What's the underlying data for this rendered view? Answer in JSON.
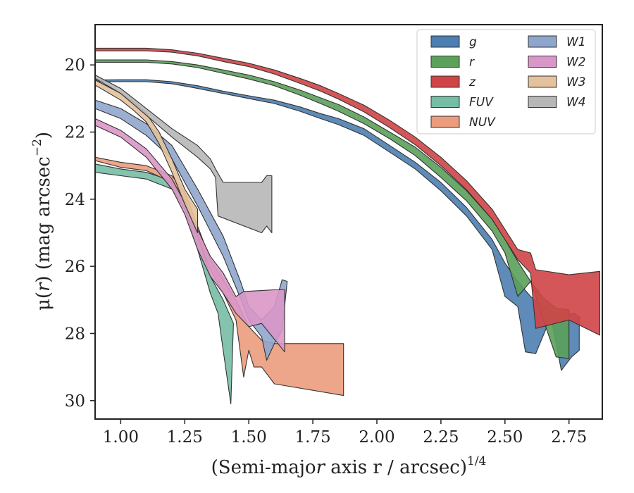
{
  "chart_data": {
    "type": "area",
    "xlabel": "(Semi-major axis r / arcsec)",
    "xlabel_italic_var": "r",
    "xlabel_superscript": "1/4",
    "ylabel": "μ(r) (mag arcsec",
    "ylabel_italic_var": "r",
    "ylabel_superscript": "−2",
    "ylabel_close": ")",
    "xlim": [
      0.9,
      2.88
    ],
    "ylim": [
      30.55,
      18.8
    ],
    "y_inverted": true,
    "xticks": [
      1.0,
      1.25,
      1.5,
      1.75,
      2.0,
      2.25,
      2.5,
      2.75
    ],
    "xtick_labels": [
      "1.00",
      "1.25",
      "1.50",
      "1.75",
      "2.00",
      "2.25",
      "2.50",
      "2.75"
    ],
    "yticks": [
      20,
      22,
      24,
      26,
      28,
      30
    ],
    "ytick_labels": [
      "20",
      "22",
      "24",
      "26",
      "28",
      "30"
    ],
    "grid": false,
    "legend_position": "top-right",
    "legend_columns": 2,
    "series": [
      {
        "name": "g",
        "color": "#4c7eb0",
        "upper": [
          [
            0.9,
            20.45
          ],
          [
            1.0,
            20.44
          ],
          [
            1.1,
            20.44
          ],
          [
            1.2,
            20.5
          ],
          [
            1.3,
            20.62
          ],
          [
            1.4,
            20.78
          ],
          [
            1.5,
            20.92
          ],
          [
            1.6,
            21.05
          ],
          [
            1.7,
            21.25
          ],
          [
            1.78,
            21.45
          ],
          [
            1.85,
            21.6
          ],
          [
            1.95,
            21.9
          ],
          [
            2.05,
            22.4
          ],
          [
            2.15,
            22.9
          ],
          [
            2.25,
            23.5
          ],
          [
            2.35,
            24.25
          ],
          [
            2.45,
            25.2
          ],
          [
            2.5,
            25.9
          ],
          [
            2.55,
            26.45
          ],
          [
            2.6,
            26.9
          ],
          [
            2.65,
            27.2
          ],
          [
            2.72,
            27.45
          ],
          [
            2.77,
            27.4
          ],
          [
            2.79,
            27.5
          ],
          [
            2.79,
            28.5
          ]
        ],
        "lower": [
          [
            0.9,
            20.5
          ],
          [
            1.0,
            20.5
          ],
          [
            1.1,
            20.5
          ],
          [
            1.2,
            20.56
          ],
          [
            1.3,
            20.7
          ],
          [
            1.4,
            20.85
          ],
          [
            1.5,
            21.0
          ],
          [
            1.6,
            21.15
          ],
          [
            1.7,
            21.38
          ],
          [
            1.78,
            21.6
          ],
          [
            1.85,
            21.78
          ],
          [
            1.95,
            22.1
          ],
          [
            2.05,
            22.6
          ],
          [
            2.15,
            23.1
          ],
          [
            2.25,
            23.75
          ],
          [
            2.35,
            24.5
          ],
          [
            2.45,
            25.5
          ],
          [
            2.5,
            26.9
          ],
          [
            2.55,
            27.2
          ],
          [
            2.58,
            28.55
          ],
          [
            2.62,
            28.6
          ],
          [
            2.68,
            27.5
          ],
          [
            2.72,
            29.1
          ],
          [
            2.76,
            28.7
          ],
          [
            2.79,
            28.5
          ]
        ]
      },
      {
        "name": "r",
        "color": "#5ba05b",
        "upper": [
          [
            0.9,
            19.85
          ],
          [
            1.0,
            19.85
          ],
          [
            1.1,
            19.85
          ],
          [
            1.2,
            19.9
          ],
          [
            1.3,
            20.0
          ],
          [
            1.4,
            20.15
          ],
          [
            1.5,
            20.3
          ],
          [
            1.6,
            20.5
          ],
          [
            1.7,
            20.75
          ],
          [
            1.78,
            20.98
          ],
          [
            1.85,
            21.18
          ],
          [
            1.95,
            21.55
          ],
          [
            2.05,
            22.0
          ],
          [
            2.15,
            22.45
          ],
          [
            2.25,
            23.05
          ],
          [
            2.35,
            23.75
          ],
          [
            2.45,
            24.6
          ],
          [
            2.5,
            25.2
          ],
          [
            2.55,
            25.85
          ],
          [
            2.6,
            26.45
          ],
          [
            2.65,
            26.95
          ],
          [
            2.7,
            27.25
          ],
          [
            2.75,
            27.3
          ]
        ],
        "lower": [
          [
            0.9,
            19.92
          ],
          [
            1.0,
            19.92
          ],
          [
            1.1,
            19.92
          ],
          [
            1.2,
            19.97
          ],
          [
            1.3,
            20.08
          ],
          [
            1.4,
            20.25
          ],
          [
            1.5,
            20.42
          ],
          [
            1.6,
            20.62
          ],
          [
            1.7,
            20.9
          ],
          [
            1.78,
            21.15
          ],
          [
            1.85,
            21.38
          ],
          [
            1.95,
            21.75
          ],
          [
            2.05,
            22.2
          ],
          [
            2.15,
            22.7
          ],
          [
            2.25,
            23.35
          ],
          [
            2.35,
            24.05
          ],
          [
            2.45,
            24.95
          ],
          [
            2.5,
            25.6
          ],
          [
            2.55,
            26.9
          ],
          [
            2.6,
            26.45
          ],
          [
            2.65,
            27.6
          ],
          [
            2.7,
            28.7
          ],
          [
            2.75,
            28.75
          ],
          [
            2.75,
            27.3
          ]
        ]
      },
      {
        "name": "z",
        "color": "#d04446",
        "upper": [
          [
            0.9,
            19.5
          ],
          [
            1.0,
            19.5
          ],
          [
            1.1,
            19.5
          ],
          [
            1.2,
            19.55
          ],
          [
            1.3,
            19.65
          ],
          [
            1.4,
            19.8
          ],
          [
            1.5,
            19.95
          ],
          [
            1.6,
            20.15
          ],
          [
            1.7,
            20.4
          ],
          [
            1.78,
            20.62
          ],
          [
            1.85,
            20.85
          ],
          [
            1.95,
            21.2
          ],
          [
            2.05,
            21.65
          ],
          [
            2.15,
            22.15
          ],
          [
            2.25,
            22.75
          ],
          [
            2.35,
            23.45
          ],
          [
            2.45,
            24.3
          ],
          [
            2.5,
            24.9
          ],
          [
            2.55,
            25.5
          ],
          [
            2.6,
            25.6
          ],
          [
            2.62,
            26.1
          ],
          [
            2.75,
            26.25
          ],
          [
            2.87,
            26.15
          ]
        ],
        "lower": [
          [
            0.9,
            19.58
          ],
          [
            1.0,
            19.58
          ],
          [
            1.1,
            19.58
          ],
          [
            1.2,
            19.62
          ],
          [
            1.3,
            19.73
          ],
          [
            1.4,
            19.9
          ],
          [
            1.5,
            20.05
          ],
          [
            1.6,
            20.27
          ],
          [
            1.7,
            20.55
          ],
          [
            1.78,
            20.78
          ],
          [
            1.85,
            21.02
          ],
          [
            1.95,
            21.4
          ],
          [
            2.05,
            21.87
          ],
          [
            2.15,
            22.38
          ],
          [
            2.25,
            23.0
          ],
          [
            2.35,
            23.72
          ],
          [
            2.45,
            24.6
          ],
          [
            2.5,
            25.2
          ],
          [
            2.55,
            25.8
          ],
          [
            2.6,
            26.2
          ],
          [
            2.62,
            27.85
          ],
          [
            2.75,
            27.6
          ],
          [
            2.87,
            28.05
          ]
        ]
      },
      {
        "name": "FUV",
        "color": "#77bca4",
        "upper": [
          [
            0.9,
            22.95
          ],
          [
            1.0,
            23.1
          ],
          [
            1.1,
            23.2
          ],
          [
            1.2,
            23.45
          ],
          [
            1.25,
            24.0
          ],
          [
            1.3,
            25.0
          ],
          [
            1.35,
            26.3
          ],
          [
            1.4,
            27.0
          ],
          [
            1.44,
            27.7
          ]
        ],
        "lower": [
          [
            0.9,
            23.2
          ],
          [
            1.0,
            23.3
          ],
          [
            1.1,
            23.4
          ],
          [
            1.2,
            23.7
          ],
          [
            1.25,
            24.3
          ],
          [
            1.3,
            25.5
          ],
          [
            1.35,
            26.8
          ],
          [
            1.38,
            27.4
          ],
          [
            1.4,
            28.5
          ],
          [
            1.43,
            30.1
          ],
          [
            1.44,
            27.7
          ]
        ]
      },
      {
        "name": "NUV",
        "color": "#eb9c7c",
        "upper": [
          [
            0.9,
            22.75
          ],
          [
            1.0,
            22.9
          ],
          [
            1.1,
            23.0
          ],
          [
            1.2,
            23.3
          ],
          [
            1.25,
            23.8
          ],
          [
            1.3,
            24.8
          ],
          [
            1.35,
            25.8
          ],
          [
            1.4,
            26.4
          ],
          [
            1.45,
            27.0
          ],
          [
            1.5,
            27.8
          ],
          [
            1.55,
            28.2
          ],
          [
            1.6,
            28.3
          ],
          [
            1.87,
            28.3
          ]
        ],
        "lower": [
          [
            0.9,
            22.85
          ],
          [
            1.0,
            23.05
          ],
          [
            1.1,
            23.15
          ],
          [
            1.2,
            23.5
          ],
          [
            1.25,
            24.05
          ],
          [
            1.3,
            25.1
          ],
          [
            1.35,
            26.1
          ],
          [
            1.4,
            26.8
          ],
          [
            1.45,
            27.6
          ],
          [
            1.48,
            29.3
          ],
          [
            1.5,
            28.5
          ],
          [
            1.52,
            29.0
          ],
          [
            1.55,
            29.0
          ],
          [
            1.6,
            29.5
          ],
          [
            1.87,
            29.85
          ]
        ]
      },
      {
        "name": "W1",
        "color": "#8fa6cc",
        "upper": [
          [
            0.9,
            21.05
          ],
          [
            1.0,
            21.3
          ],
          [
            1.1,
            21.75
          ],
          [
            1.2,
            22.4
          ],
          [
            1.3,
            23.7
          ],
          [
            1.4,
            25.1
          ],
          [
            1.47,
            26.5
          ],
          [
            1.5,
            27.2
          ],
          [
            1.55,
            27.6
          ],
          [
            1.6,
            27.2
          ],
          [
            1.63,
            26.4
          ],
          [
            1.65,
            26.45
          ]
        ],
        "lower": [
          [
            0.9,
            21.3
          ],
          [
            1.0,
            21.6
          ],
          [
            1.1,
            22.1
          ],
          [
            1.2,
            22.8
          ],
          [
            1.3,
            24.2
          ],
          [
            1.4,
            25.7
          ],
          [
            1.47,
            27.0
          ],
          [
            1.5,
            27.6
          ],
          [
            1.55,
            28.1
          ],
          [
            1.57,
            28.8
          ],
          [
            1.6,
            28.3
          ],
          [
            1.63,
            27.9
          ],
          [
            1.65,
            26.45
          ]
        ]
      },
      {
        "name": "W2",
        "color": "#d997c7",
        "upper": [
          [
            0.9,
            21.6
          ],
          [
            1.0,
            21.95
          ],
          [
            1.1,
            22.5
          ],
          [
            1.2,
            23.4
          ],
          [
            1.25,
            24.1
          ],
          [
            1.3,
            24.9
          ],
          [
            1.35,
            25.7
          ],
          [
            1.4,
            26.2
          ],
          [
            1.45,
            26.9
          ],
          [
            1.48,
            26.75
          ],
          [
            1.6,
            26.7
          ],
          [
            1.64,
            26.7
          ]
        ],
        "lower": [
          [
            0.9,
            21.8
          ],
          [
            1.0,
            22.15
          ],
          [
            1.1,
            22.75
          ],
          [
            1.2,
            23.7
          ],
          [
            1.25,
            24.45
          ],
          [
            1.3,
            25.5
          ],
          [
            1.35,
            26.3
          ],
          [
            1.4,
            26.8
          ],
          [
            1.45,
            27.4
          ],
          [
            1.5,
            27.8
          ],
          [
            1.55,
            27.7
          ],
          [
            1.64,
            28.55
          ],
          [
            1.64,
            26.7
          ]
        ]
      },
      {
        "name": "W3",
        "color": "#e3c29c",
        "upper": [
          [
            0.9,
            20.45
          ],
          [
            1.0,
            20.85
          ],
          [
            1.05,
            21.1
          ],
          [
            1.1,
            21.45
          ],
          [
            1.15,
            22.0
          ],
          [
            1.2,
            22.8
          ],
          [
            1.25,
            23.7
          ],
          [
            1.3,
            24.3
          ]
        ],
        "lower": [
          [
            0.9,
            20.6
          ],
          [
            1.0,
            21.05
          ],
          [
            1.05,
            21.35
          ],
          [
            1.1,
            21.7
          ],
          [
            1.15,
            22.35
          ],
          [
            1.2,
            23.2
          ],
          [
            1.25,
            24.15
          ],
          [
            1.3,
            25.0
          ]
        ]
      },
      {
        "name": "W4",
        "color": "#b7b7b7",
        "upper": [
          [
            0.9,
            20.3
          ],
          [
            1.0,
            20.7
          ],
          [
            1.1,
            21.3
          ],
          [
            1.2,
            21.9
          ],
          [
            1.3,
            22.4
          ],
          [
            1.35,
            22.8
          ],
          [
            1.37,
            23.1
          ],
          [
            1.4,
            23.5
          ],
          [
            1.55,
            23.5
          ],
          [
            1.57,
            23.3
          ],
          [
            1.59,
            23.3
          ]
        ],
        "lower": [
          [
            0.9,
            20.4
          ],
          [
            1.0,
            20.85
          ],
          [
            1.1,
            21.5
          ],
          [
            1.2,
            22.15
          ],
          [
            1.3,
            22.75
          ],
          [
            1.35,
            23.1
          ],
          [
            1.37,
            23.35
          ],
          [
            1.38,
            24.5
          ],
          [
            1.55,
            25.0
          ],
          [
            1.57,
            24.8
          ],
          [
            1.59,
            25.0
          ]
        ]
      }
    ]
  }
}
